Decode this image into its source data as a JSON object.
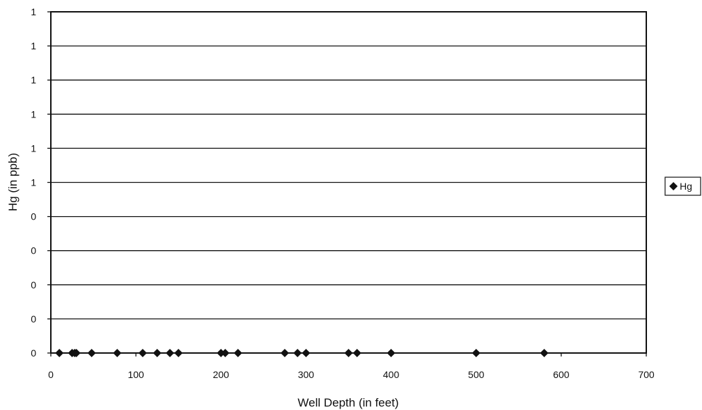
{
  "chart_data": {
    "type": "scatter",
    "xlabel": "Well Depth (in feet)",
    "ylabel": "Hg (in ppb)",
    "xlim": [
      0,
      700
    ],
    "ylim": [
      0,
      1
    ],
    "x_ticks": [
      "0",
      "100",
      "200",
      "300",
      "400",
      "500",
      "600",
      "700"
    ],
    "y_ticks": [
      "0",
      "0",
      "0",
      "0",
      "0",
      "1",
      "1",
      "1",
      "1",
      "1",
      "1"
    ],
    "grid": true,
    "legend_position": "right",
    "series": [
      {
        "name": "Hg",
        "color": "#111111",
        "marker": "diamond",
        "points": [
          {
            "x": 10,
            "y": 0
          },
          {
            "x": 25,
            "y": 0
          },
          {
            "x": 28,
            "y": 0
          },
          {
            "x": 30,
            "y": 0
          },
          {
            "x": 48,
            "y": 0
          },
          {
            "x": 78,
            "y": 0
          },
          {
            "x": 108,
            "y": 0
          },
          {
            "x": 125,
            "y": 0
          },
          {
            "x": 140,
            "y": 0
          },
          {
            "x": 150,
            "y": 0
          },
          {
            "x": 200,
            "y": 0
          },
          {
            "x": 205,
            "y": 0
          },
          {
            "x": 220,
            "y": 0
          },
          {
            "x": 275,
            "y": 0
          },
          {
            "x": 290,
            "y": 0
          },
          {
            "x": 300,
            "y": 0
          },
          {
            "x": 350,
            "y": 0
          },
          {
            "x": 360,
            "y": 0
          },
          {
            "x": 400,
            "y": 0
          },
          {
            "x": 500,
            "y": 0
          },
          {
            "x": 580,
            "y": 0
          }
        ]
      }
    ]
  },
  "legend": {
    "label": "Hg"
  }
}
